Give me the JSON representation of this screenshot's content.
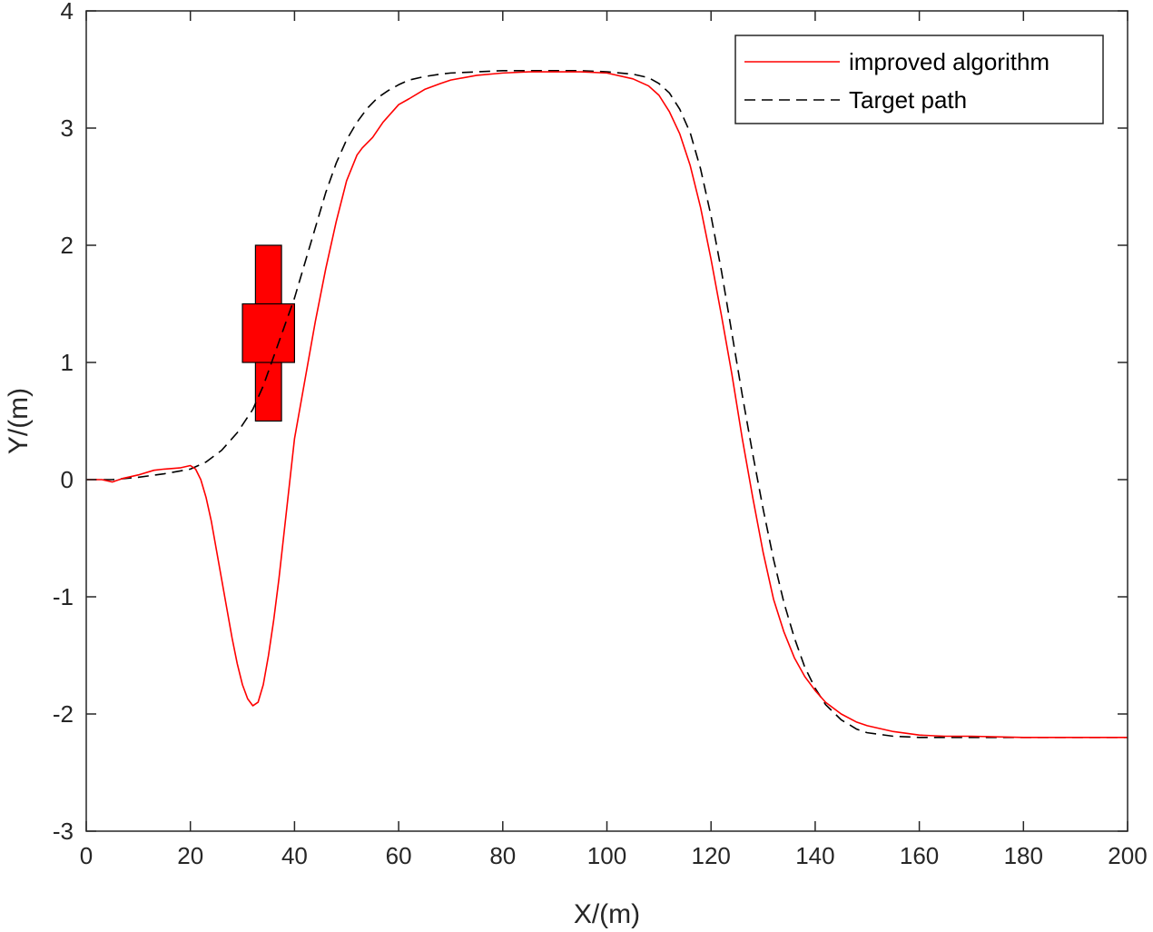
{
  "chart_data": {
    "type": "line",
    "title": "",
    "xlabel": "X/(m)",
    "ylabel": "Y/(m)",
    "xlim": [
      0,
      200
    ],
    "ylim": [
      -3,
      4
    ],
    "xticks": [
      0,
      20,
      40,
      60,
      80,
      100,
      120,
      140,
      160,
      180,
      200
    ],
    "yticks": [
      -3,
      -2,
      -1,
      0,
      1,
      2,
      3,
      4
    ],
    "grid": false,
    "legend_position": "top-right",
    "series": [
      {
        "name": "improved algorithm",
        "color": "#ff0000",
        "style": "solid",
        "x": [
          0,
          3,
          5,
          7,
          10,
          13,
          15,
          18,
          20,
          21,
          22,
          23,
          24,
          25,
          26,
          27,
          28,
          29,
          30,
          31,
          32,
          33,
          34,
          35,
          36,
          37,
          38,
          39,
          40,
          42,
          44,
          46,
          48,
          50,
          52,
          53,
          55,
          57,
          60,
          62,
          65,
          68,
          70,
          75,
          80,
          85,
          90,
          95,
          100,
          105,
          108,
          110,
          112,
          114,
          116,
          118,
          120,
          122,
          124,
          126,
          128,
          130,
          132,
          134,
          136,
          138,
          140,
          142,
          145,
          148,
          150,
          155,
          160,
          165,
          170,
          180,
          190,
          200
        ],
        "y": [
          0,
          0,
          -0.02,
          0.01,
          0.04,
          0.08,
          0.09,
          0.1,
          0.12,
          0.09,
          0.0,
          -0.15,
          -0.35,
          -0.6,
          -0.85,
          -1.1,
          -1.35,
          -1.57,
          -1.75,
          -1.87,
          -1.93,
          -1.9,
          -1.75,
          -1.5,
          -1.2,
          -0.85,
          -0.45,
          -0.05,
          0.35,
          0.85,
          1.35,
          1.8,
          2.2,
          2.55,
          2.77,
          2.83,
          2.92,
          3.05,
          3.2,
          3.25,
          3.33,
          3.38,
          3.41,
          3.45,
          3.47,
          3.48,
          3.48,
          3.48,
          3.47,
          3.42,
          3.36,
          3.28,
          3.14,
          2.95,
          2.68,
          2.32,
          1.88,
          1.4,
          0.9,
          0.35,
          -0.15,
          -0.62,
          -1.02,
          -1.3,
          -1.52,
          -1.68,
          -1.8,
          -1.9,
          -2.0,
          -2.07,
          -2.1,
          -2.15,
          -2.18,
          -2.19,
          -2.19,
          -2.2,
          -2.2,
          -2.2
        ]
      },
      {
        "name": "Target path",
        "color": "#000000",
        "style": "dashed",
        "x": [
          0,
          5,
          10,
          15,
          20,
          23,
          26,
          29,
          32,
          34,
          36,
          38,
          40,
          42,
          44,
          46,
          48,
          50,
          52,
          54,
          56,
          58,
          60,
          62,
          65,
          68,
          70,
          75,
          80,
          85,
          90,
          95,
          100,
          105,
          108,
          110,
          112,
          114,
          116,
          118,
          120,
          122,
          124,
          126,
          128,
          130,
          132,
          134,
          136,
          138,
          140,
          142,
          145,
          148,
          150,
          155,
          160,
          165,
          170,
          180,
          190,
          200
        ],
        "y": [
          0,
          0,
          0.02,
          0.05,
          0.09,
          0.15,
          0.25,
          0.4,
          0.6,
          0.8,
          1.05,
          1.3,
          1.55,
          1.85,
          2.15,
          2.45,
          2.7,
          2.9,
          3.05,
          3.17,
          3.26,
          3.32,
          3.37,
          3.41,
          3.44,
          3.46,
          3.47,
          3.48,
          3.49,
          3.49,
          3.49,
          3.49,
          3.48,
          3.46,
          3.43,
          3.38,
          3.3,
          3.16,
          2.96,
          2.65,
          2.25,
          1.78,
          1.25,
          0.72,
          0.22,
          -0.25,
          -0.68,
          -1.05,
          -1.35,
          -1.6,
          -1.78,
          -1.92,
          -2.05,
          -2.13,
          -2.16,
          -2.19,
          -2.2,
          -2.2,
          -2.2,
          -2.2,
          -2.2,
          -2.2
        ]
      }
    ],
    "obstacle": {
      "color": "#ff0000",
      "parts": [
        {
          "x_range": [
            32.5,
            37.5
          ],
          "y_range": [
            0.5,
            2.0
          ]
        },
        {
          "x_range": [
            30,
            40
          ],
          "y_range": [
            1.0,
            1.5
          ]
        }
      ]
    }
  }
}
